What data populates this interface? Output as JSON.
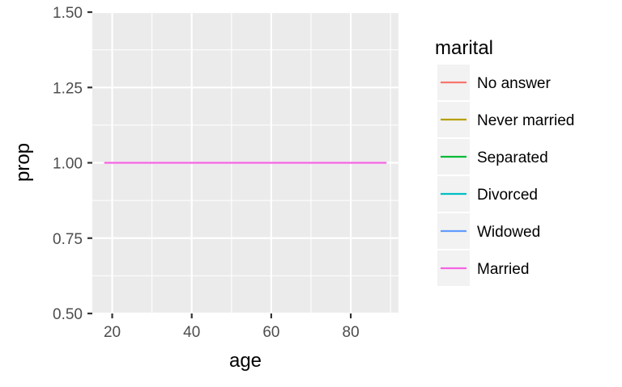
{
  "chart_data": {
    "type": "line",
    "title": "",
    "xlabel": "age",
    "ylabel": "prop",
    "xlim": [
      15,
      92
    ],
    "ylim": [
      0.5,
      1.5
    ],
    "x_ticks": [
      20,
      40,
      60,
      80
    ],
    "y_ticks": [
      0.5,
      0.75,
      1.0,
      1.25,
      1.5
    ],
    "x_tick_labels": [
      "20",
      "40",
      "60",
      "80"
    ],
    "y_tick_labels": [
      "0.50",
      "0.75",
      "1.00",
      "1.25",
      "1.50"
    ],
    "grid": true,
    "legend": {
      "title": "marital",
      "position": "right"
    },
    "series": [
      {
        "name": "No answer",
        "color": "#F8766D",
        "points": []
      },
      {
        "name": "Never married",
        "color": "#B79F00",
        "points": []
      },
      {
        "name": "Separated",
        "color": "#00BA38",
        "points": []
      },
      {
        "name": "Divorced",
        "color": "#00BFC4",
        "points": []
      },
      {
        "name": "Widowed",
        "color": "#619CFF",
        "points": []
      },
      {
        "name": "Married",
        "color": "#F564E3",
        "points": [
          [
            18,
            1.0
          ],
          [
            89,
            1.0
          ]
        ]
      }
    ],
    "colors": {
      "panel_background": "#EBEBEB",
      "grid_major": "#FFFFFF",
      "text": "#4D4D4D",
      "axis_title": "#000000",
      "tick": "#333333",
      "legend_key_background": "#F2F2F2"
    }
  }
}
